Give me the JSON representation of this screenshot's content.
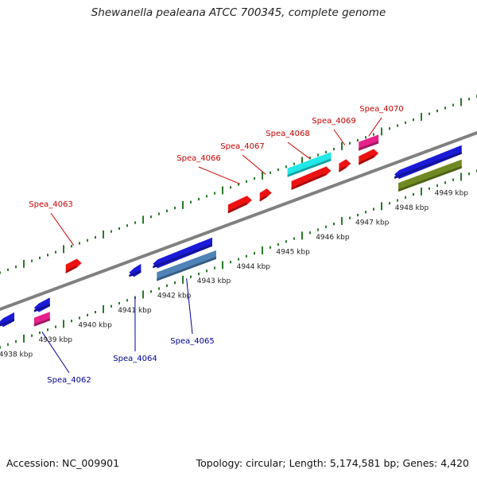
{
  "title": "Shewanella pealeana ATCC 700345, complete genome",
  "accession_text": "Accession: NC_009901",
  "summary_text": "Topology: circular; Length: 5,174,581 bp; Genes: 4,420",
  "colors": {
    "backbone": "#808080",
    "tick": "#2a7a2a",
    "forward_label": "#cc0000",
    "reverse_label": "#000099",
    "red": "#ee1111",
    "blue": "#1a1ad8",
    "magenta": "#e8208a",
    "cyan": "#22e8e8",
    "steelblue": "#4f83b8",
    "olive": "#6f8a22"
  },
  "ruler": {
    "unit": "kbp",
    "start_kbp": 4938,
    "end_kbp": 4949,
    "labels": [
      "4938 kbp",
      "4939 kbp",
      "4940 kbp",
      "4941 kbp",
      "4942 kbp",
      "4943 kbp",
      "4944 kbp",
      "4945 kbp",
      "4946 kbp",
      "4947 kbp",
      "4948 kbp",
      "4949 kbp"
    ]
  },
  "genes": [
    {
      "locus": "Spea_4062",
      "strand": "reverse",
      "color": "magenta",
      "start_kbp": 4938.5,
      "end_kbp": 4938.9,
      "labelled": true
    },
    {
      "locus": "",
      "strand": "reverse",
      "color": "blue",
      "start_kbp": 4937.6,
      "end_kbp": 4938.0,
      "labelled": false
    },
    {
      "locus": "",
      "strand": "reverse",
      "color": "blue",
      "start_kbp": 4938.5,
      "end_kbp": 4938.9,
      "labelled": false
    },
    {
      "locus": "Spea_4063",
      "strand": "forward",
      "color": "red",
      "start_kbp": 4939.3,
      "end_kbp": 4939.7,
      "labelled": true
    },
    {
      "locus": "Spea_4064",
      "strand": "reverse",
      "color": "blue",
      "start_kbp": 4940.9,
      "end_kbp": 4941.2,
      "labelled": true
    },
    {
      "locus": "",
      "strand": "reverse",
      "color": "blue",
      "start_kbp": 4941.5,
      "end_kbp": 4943.0,
      "labelled": false
    },
    {
      "locus": "Spea_4065",
      "strand": "reverse",
      "color": "steelblue",
      "start_kbp": 4941.6,
      "end_kbp": 4943.1,
      "labelled": true
    },
    {
      "locus": "Spea_4066",
      "strand": "forward",
      "color": "red",
      "start_kbp": 4943.4,
      "end_kbp": 4944.0,
      "labelled": true
    },
    {
      "locus": "Spea_4067",
      "strand": "forward",
      "color": "red",
      "start_kbp": 4944.2,
      "end_kbp": 4944.5,
      "labelled": true
    },
    {
      "locus": "Spea_4068",
      "strand": "forward",
      "color": "cyan",
      "start_kbp": 4944.9,
      "end_kbp": 4946.0,
      "labelled": true
    },
    {
      "locus": "",
      "strand": "forward",
      "color": "red",
      "start_kbp": 4945.0,
      "end_kbp": 4946.0,
      "labelled": false
    },
    {
      "locus": "Spea_4069",
      "strand": "forward",
      "color": "red",
      "start_kbp": 4946.2,
      "end_kbp": 4946.5,
      "labelled": true
    },
    {
      "locus": "Spea_4070",
      "strand": "forward",
      "color": "magenta",
      "start_kbp": 4946.7,
      "end_kbp": 4947.2,
      "labelled": true
    },
    {
      "locus": "",
      "strand": "forward",
      "color": "red",
      "start_kbp": 4946.7,
      "end_kbp": 4947.2,
      "labelled": false
    },
    {
      "locus": "",
      "strand": "reverse",
      "color": "blue",
      "start_kbp": 4947.6,
      "end_kbp": 4949.3,
      "labelled": false
    },
    {
      "locus": "",
      "strand": "reverse",
      "color": "olive",
      "start_kbp": 4947.7,
      "end_kbp": 4949.3,
      "labelled": false
    }
  ]
}
